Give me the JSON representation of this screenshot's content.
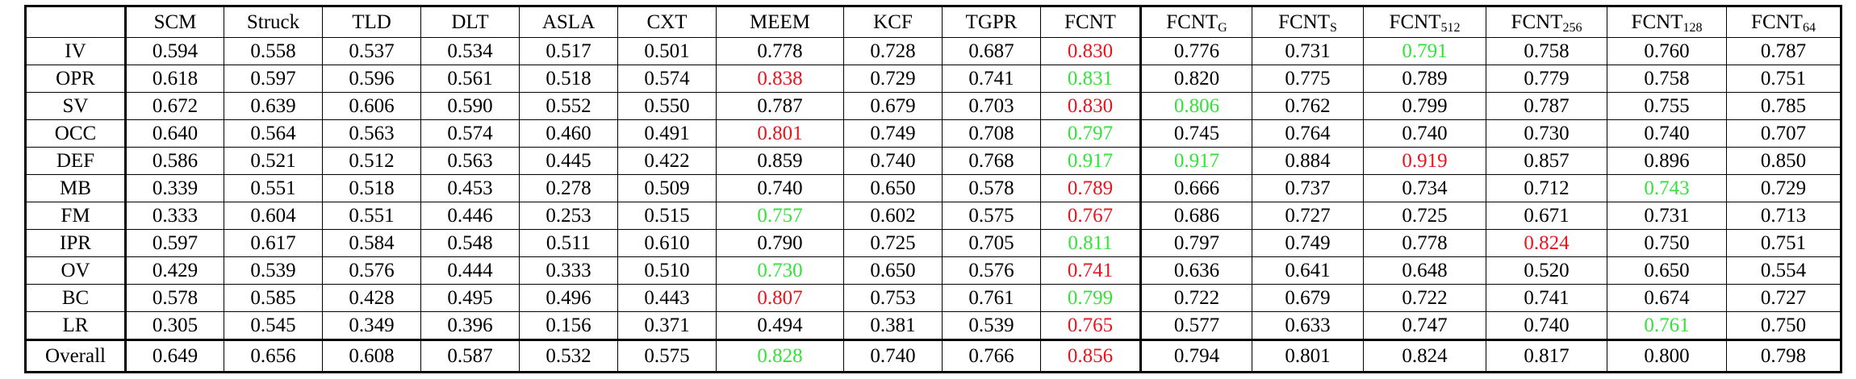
{
  "table": {
    "columns": [
      {
        "label": "",
        "sub": ""
      },
      {
        "label": "SCM",
        "sub": ""
      },
      {
        "label": "Struck",
        "sub": ""
      },
      {
        "label": "TLD",
        "sub": ""
      },
      {
        "label": "DLT",
        "sub": ""
      },
      {
        "label": "ASLA",
        "sub": ""
      },
      {
        "label": "CXT",
        "sub": ""
      },
      {
        "label": "MEEM",
        "sub": ""
      },
      {
        "label": "KCF",
        "sub": ""
      },
      {
        "label": "TGPR",
        "sub": ""
      },
      {
        "label": "FCNT",
        "sub": ""
      },
      {
        "label": "FCNT",
        "sub": "G"
      },
      {
        "label": "FCNT",
        "sub": "S"
      },
      {
        "label": "FCNT",
        "sub": "512"
      },
      {
        "label": "FCNT",
        "sub": "256"
      },
      {
        "label": "FCNT",
        "sub": "128"
      },
      {
        "label": "FCNT",
        "sub": "64"
      }
    ],
    "rows": [
      {
        "attr": "IV",
        "values": [
          "0.594",
          "0.558",
          "0.537",
          "0.534",
          "0.517",
          "0.501",
          "0.778",
          "0.728",
          "0.687",
          "0.830",
          "0.776",
          "0.731",
          "0.791",
          "0.758",
          "0.760",
          "0.787"
        ],
        "best": 9,
        "second": 12
      },
      {
        "attr": "OPR",
        "values": [
          "0.618",
          "0.597",
          "0.596",
          "0.561",
          "0.518",
          "0.574",
          "0.838",
          "0.729",
          "0.741",
          "0.831",
          "0.820",
          "0.775",
          "0.789",
          "0.779",
          "0.758",
          "0.751"
        ],
        "best": 6,
        "second": 9
      },
      {
        "attr": "SV",
        "values": [
          "0.672",
          "0.639",
          "0.606",
          "0.590",
          "0.552",
          "0.550",
          "0.787",
          "0.679",
          "0.703",
          "0.830",
          "0.806",
          "0.762",
          "0.799",
          "0.787",
          "0.755",
          "0.785"
        ],
        "best": 9,
        "second": 10
      },
      {
        "attr": "OCC",
        "values": [
          "0.640",
          "0.564",
          "0.563",
          "0.574",
          "0.460",
          "0.491",
          "0.801",
          "0.749",
          "0.708",
          "0.797",
          "0.745",
          "0.764",
          "0.740",
          "0.730",
          "0.740",
          "0.707"
        ],
        "best": 6,
        "second": 9
      },
      {
        "attr": "DEF",
        "values": [
          "0.586",
          "0.521",
          "0.512",
          "0.563",
          "0.445",
          "0.422",
          "0.859",
          "0.740",
          "0.768",
          "0.917",
          "0.917",
          "0.884",
          "0.919",
          "0.857",
          "0.896",
          "0.850"
        ],
        "best": 12,
        "second": [
          9,
          10
        ]
      },
      {
        "attr": "MB",
        "values": [
          "0.339",
          "0.551",
          "0.518",
          "0.453",
          "0.278",
          "0.509",
          "0.740",
          "0.650",
          "0.578",
          "0.789",
          "0.666",
          "0.737",
          "0.734",
          "0.712",
          "0.743",
          "0.729"
        ],
        "best": 9,
        "second": 14
      },
      {
        "attr": "FM",
        "values": [
          "0.333",
          "0.604",
          "0.551",
          "0.446",
          "0.253",
          "0.515",
          "0.757",
          "0.602",
          "0.575",
          "0.767",
          "0.686",
          "0.727",
          "0.725",
          "0.671",
          "0.731",
          "0.713"
        ],
        "best": 9,
        "second": 6
      },
      {
        "attr": "IPR",
        "values": [
          "0.597",
          "0.617",
          "0.584",
          "0.548",
          "0.511",
          "0.610",
          "0.790",
          "0.725",
          "0.705",
          "0.811",
          "0.797",
          "0.749",
          "0.778",
          "0.824",
          "0.750",
          "0.751"
        ],
        "best": 13,
        "second": 9
      },
      {
        "attr": "OV",
        "values": [
          "0.429",
          "0.539",
          "0.576",
          "0.444",
          "0.333",
          "0.510",
          "0.730",
          "0.650",
          "0.576",
          "0.741",
          "0.636",
          "0.641",
          "0.648",
          "0.520",
          "0.650",
          "0.554"
        ],
        "best": 9,
        "second": 6
      },
      {
        "attr": "BC",
        "values": [
          "0.578",
          "0.585",
          "0.428",
          "0.495",
          "0.496",
          "0.443",
          "0.807",
          "0.753",
          "0.761",
          "0.799",
          "0.722",
          "0.679",
          "0.722",
          "0.741",
          "0.674",
          "0.727"
        ],
        "best": 6,
        "second": 9
      },
      {
        "attr": "LR",
        "values": [
          "0.305",
          "0.545",
          "0.349",
          "0.396",
          "0.156",
          "0.371",
          "0.494",
          "0.381",
          "0.539",
          "0.765",
          "0.577",
          "0.633",
          "0.747",
          "0.740",
          "0.761",
          "0.750"
        ],
        "best": 9,
        "second": 14
      }
    ],
    "overall": {
      "attr": "Overall",
      "values": [
        "0.649",
        "0.656",
        "0.608",
        "0.587",
        "0.532",
        "0.575",
        "0.828",
        "0.740",
        "0.766",
        "0.856",
        "0.794",
        "0.801",
        "0.824",
        "0.817",
        "0.800",
        "0.798"
      ],
      "best": 9,
      "second": 6
    }
  },
  "colors": {
    "best": "#e8141e",
    "second": "#34e23a",
    "border": "#000000"
  }
}
